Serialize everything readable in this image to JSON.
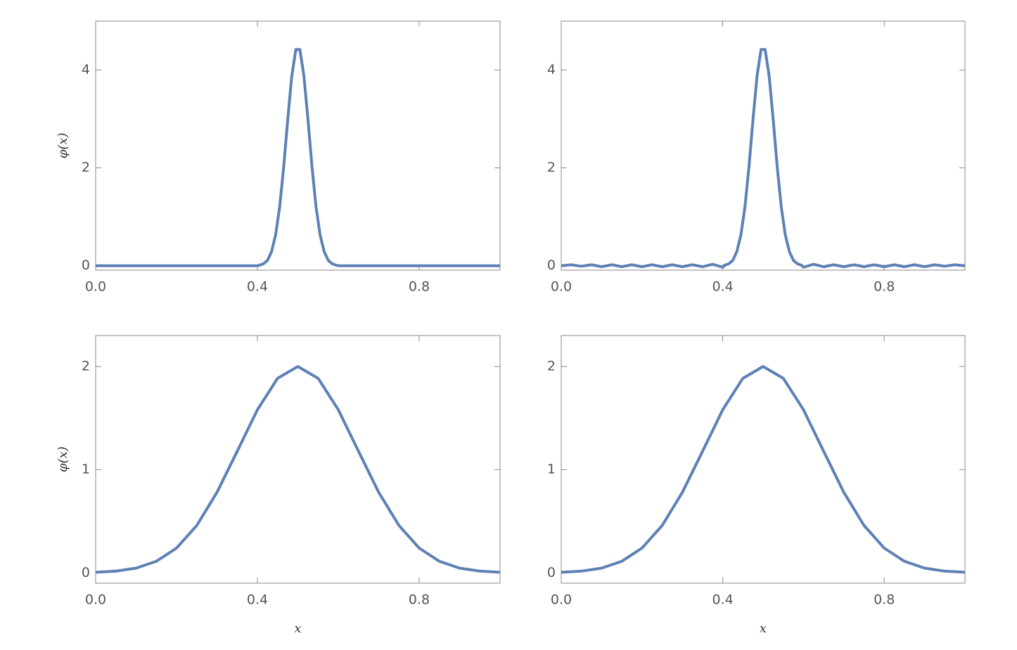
{
  "chart_data": [
    {
      "type": "line",
      "ylabel": "φ(x)",
      "color": "#5e81b5",
      "x": [
        0,
        0.1,
        0.2,
        0.3,
        0.4,
        0.405,
        0.415,
        0.425,
        0.435,
        0.445,
        0.455,
        0.465,
        0.475,
        0.485,
        0.495,
        0.505,
        0.515,
        0.525,
        0.535,
        0.545,
        0.555,
        0.565,
        0.575,
        0.585,
        0.595,
        0.6,
        0.7,
        0.8,
        0.9,
        1
      ],
      "values": [
        0,
        0,
        0,
        0,
        0,
        0.01,
        0.04,
        0.11,
        0.29,
        0.63,
        1.2,
        2.02,
        2.99,
        3.88,
        4.42,
        4.42,
        3.88,
        2.99,
        2.02,
        1.2,
        0.63,
        0.29,
        0.11,
        0.04,
        0.01,
        0,
        0,
        0,
        0,
        0
      ],
      "xlim": [
        0,
        1
      ],
      "xticks": [
        {
          "value": 0,
          "label": "0.0"
        },
        0.4,
        0.8
      ],
      "ylim": [
        -0.09,
        5
      ],
      "yticks": [
        0,
        2,
        4
      ]
    },
    {
      "type": "line",
      "color": "#5e81b5",
      "x": [
        0,
        0.025,
        0.05,
        0.075,
        0.1,
        0.125,
        0.15,
        0.175,
        0.2,
        0.225,
        0.25,
        0.275,
        0.3,
        0.325,
        0.35,
        0.375,
        0.4,
        0.405,
        0.415,
        0.425,
        0.435,
        0.445,
        0.455,
        0.465,
        0.475,
        0.485,
        0.495,
        0.505,
        0.515,
        0.525,
        0.535,
        0.545,
        0.555,
        0.565,
        0.575,
        0.585,
        0.595,
        0.6,
        0.625,
        0.65,
        0.675,
        0.7,
        0.725,
        0.75,
        0.775,
        0.8,
        0.825,
        0.85,
        0.875,
        0.9,
        0.925,
        0.95,
        0.975,
        1
      ],
      "values": [
        0,
        0.02,
        -0.01,
        0.02,
        -0.02,
        0.02,
        -0.02,
        0.02,
        -0.02,
        0.02,
        -0.02,
        0.02,
        -0.02,
        0.02,
        -0.02,
        0.03,
        -0.03,
        0.01,
        0.04,
        0.11,
        0.29,
        0.63,
        1.2,
        2.02,
        2.99,
        3.88,
        4.42,
        4.42,
        3.88,
        2.99,
        2.02,
        1.2,
        0.63,
        0.29,
        0.11,
        0.04,
        0.01,
        -0.03,
        0.03,
        -0.02,
        0.02,
        -0.02,
        0.02,
        -0.02,
        0.02,
        -0.02,
        0.02,
        -0.02,
        0.02,
        -0.02,
        0.02,
        -0.01,
        0.02,
        0
      ],
      "xlim": [
        0,
        1
      ],
      "xticks": [
        {
          "value": 0,
          "label": "0.0"
        },
        0.4,
        0.8
      ],
      "ylim": [
        -0.09,
        5
      ],
      "yticks": [
        0,
        2,
        4
      ]
    },
    {
      "type": "line",
      "ylabel": "φ(x)",
      "xlabel": "x",
      "color": "#5e81b5",
      "x": [
        0,
        0.05,
        0.1,
        0.15,
        0.2,
        0.25,
        0.3,
        0.35,
        0.4,
        0.45,
        0.5,
        0.55,
        0.6,
        0.65,
        0.7,
        0.75,
        0.8,
        0.85,
        0.9,
        0.95,
        1
      ],
      "values": [
        0.006,
        0.017,
        0.046,
        0.112,
        0.24,
        0.459,
        0.78,
        1.178,
        1.581,
        1.886,
        2,
        1.886,
        1.581,
        1.178,
        0.78,
        0.459,
        0.24,
        0.112,
        0.046,
        0.017,
        0.006
      ],
      "xlim": [
        0,
        1
      ],
      "xticks": [
        {
          "value": 0,
          "label": "0.0"
        },
        0.4,
        0.8
      ],
      "ylim": [
        -0.1,
        2.3
      ],
      "yticks": [
        0,
        1,
        2
      ]
    },
    {
      "type": "line",
      "xlabel": "x",
      "color": "#5e81b5",
      "x": [
        0,
        0.05,
        0.1,
        0.15,
        0.2,
        0.25,
        0.3,
        0.35,
        0.4,
        0.45,
        0.5,
        0.55,
        0.6,
        0.65,
        0.7,
        0.75,
        0.8,
        0.85,
        0.9,
        0.95,
        1
      ],
      "values": [
        0.006,
        0.017,
        0.046,
        0.112,
        0.24,
        0.459,
        0.78,
        1.178,
        1.581,
        1.886,
        2,
        1.886,
        1.581,
        1.178,
        0.78,
        0.459,
        0.24,
        0.112,
        0.046,
        0.017,
        0.006
      ],
      "xlim": [
        0,
        1
      ],
      "xticks": [
        {
          "value": 0,
          "label": "0.0"
        },
        0.4,
        0.8
      ],
      "ylim": [
        -0.1,
        2.3
      ],
      "yticks": [
        0,
        1,
        2
      ]
    }
  ]
}
